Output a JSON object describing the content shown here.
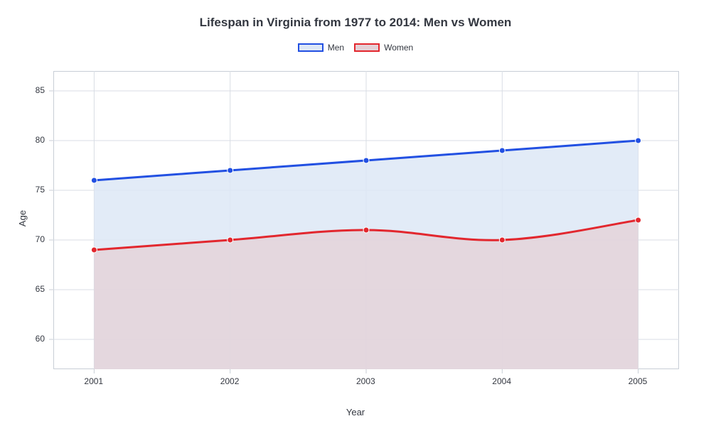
{
  "chart": {
    "type": "area-line",
    "title": "Lifespan in Virginia from 1977 to 2014: Men vs Women",
    "xlabel": "Year",
    "ylabel": "Age",
    "background_color": "#ffffff",
    "plot_bg_color": "#ffffff",
    "grid_color_major": "#d8dde4",
    "grid_color_box": "#c8ced6",
    "title_fontsize": 17,
    "label_fontsize": 13,
    "tick_fontsize": 12,
    "xlim": [
      2000.7,
      2005.3
    ],
    "ylim": [
      57,
      87
    ],
    "xticks": [
      2001,
      2002,
      2003,
      2004,
      2005
    ],
    "yticks": [
      60,
      65,
      70,
      75,
      80,
      85
    ],
    "categories": [
      "2001",
      "2002",
      "2003",
      "2004",
      "2005"
    ],
    "series": [
      {
        "name": "Men",
        "color": "#2250e2",
        "fill": "#dde7f6",
        "fill_opacity": 0.85,
        "line_width": 3,
        "marker_radius": 4,
        "values": [
          76,
          77,
          78,
          79,
          80
        ]
      },
      {
        "name": "Women",
        "color": "#e2272e",
        "fill": "#e4d0d6",
        "fill_opacity": 0.75,
        "line_width": 3,
        "marker_radius": 4,
        "values": [
          69,
          70,
          71,
          70,
          72
        ]
      }
    ]
  }
}
